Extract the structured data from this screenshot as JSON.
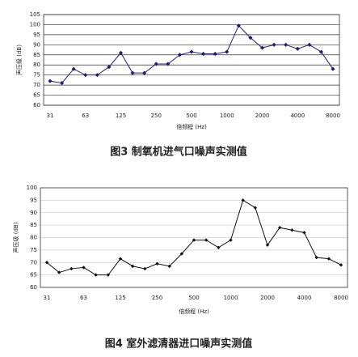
{
  "chart_data": [
    {
      "type": "line",
      "title": "图3 制氧机进气口噪声实测值",
      "x_label": "倍频程 (Hz)",
      "y_label": "声压级 (dB)",
      "categories": [
        "31",
        null,
        null,
        "63",
        null,
        null,
        "125",
        null,
        null,
        "250",
        null,
        null,
        "500",
        null,
        null,
        "1000",
        null,
        null,
        "2000",
        null,
        null,
        "4000",
        null,
        null,
        "8000"
      ],
      "values": [
        72,
        71,
        78,
        75,
        75,
        79,
        86,
        76,
        76,
        80.5,
        80.5,
        85,
        86.5,
        85.5,
        85.5,
        86.5,
        99.5,
        93.5,
        88.5,
        90,
        90,
        88,
        90,
        86.5,
        78
      ],
      "color": "#1f1f78",
      "ylim": [
        60,
        105
      ],
      "yticks": [
        60,
        65,
        70,
        75,
        80,
        85,
        90,
        95,
        100,
        105
      ],
      "grid": true
    },
    {
      "type": "line",
      "title": "图4 室外滤清器进口噪声实测值",
      "x_label": "倍频程 (Hz)",
      "y_label": "声压级 (dB)",
      "categories": [
        "31",
        null,
        null,
        "63",
        null,
        null,
        "125",
        null,
        null,
        "250",
        null,
        null,
        "500",
        null,
        null,
        "1000",
        null,
        null,
        "2000",
        null,
        null,
        "4000",
        null,
        null,
        "8000"
      ],
      "values": [
        70,
        66,
        67.5,
        68,
        65,
        65,
        71.5,
        68.5,
        67.5,
        69.5,
        68.5,
        73.5,
        79,
        79,
        76,
        79,
        95,
        92,
        77,
        84,
        83,
        82,
        72,
        71.5,
        69
      ],
      "color": "#111111",
      "ylim": [
        60,
        100
      ],
      "yticks": [
        60,
        65,
        70,
        75,
        80,
        85,
        90,
        95,
        100
      ],
      "grid": true
    }
  ]
}
